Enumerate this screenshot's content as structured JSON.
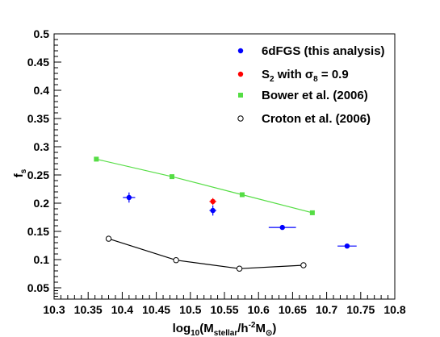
{
  "chart_data": {
    "type": "scatter",
    "xlim": [
      10.3,
      10.8
    ],
    "ylim": [
      0.03,
      0.5
    ],
    "x_ticks": [
      "10.3",
      "10.35",
      "10.4",
      "10.45",
      "10.5",
      "10.55",
      "10.6",
      "10.65",
      "10.7",
      "10.75",
      "10.8"
    ],
    "y_ticks": [
      "0.05",
      "0.1",
      "0.15",
      "0.2",
      "0.25",
      "0.3",
      "0.35",
      "0.4",
      "0.45",
      "0.5"
    ],
    "xlabel": {
      "base": "log",
      "sub1": "10",
      "mid": "(M",
      "sub2": "stellar",
      "mid2": "/h",
      "sup": "-2",
      "end": "M",
      "sub3": "⊙",
      "close": ")"
    },
    "ylabel": {
      "base": "f",
      "sub": "s"
    },
    "grid": false,
    "legend_position": "top-right",
    "legend": [
      {
        "label": "6dFGS (this analysis)",
        "marker": "filled-circle",
        "color": "#0000ff"
      },
      {
        "label_parts": {
          "base": "S",
          "sub": "2",
          "mid": " with σ",
          "sub2": "8",
          "end": " = 0.9"
        },
        "marker": "filled-circle",
        "color": "#ff0000"
      },
      {
        "label": "Bower et al. (2006)",
        "marker": "square",
        "color": "#55dd44"
      },
      {
        "label": "Croton et al. (2006)",
        "marker": "open-circle",
        "color": "#000000"
      }
    ],
    "series": [
      {
        "key": "6dfgs",
        "marker": "filled-circle",
        "color": "#0000ff",
        "points": [
          {
            "x": 10.41,
            "y": 0.21,
            "xerr": 0.009,
            "yerr": 0.009
          },
          {
            "x": 10.533,
            "y": 0.187,
            "xerr": 0.005,
            "yerr": 0.009
          },
          {
            "x": 10.635,
            "y": 0.157,
            "xerr": 0.02,
            "yerr": 0.004
          },
          {
            "x": 10.73,
            "y": 0.124,
            "xerr": 0.014,
            "yerr": 0.003
          }
        ]
      },
      {
        "key": "s2",
        "marker": "filled-circle",
        "color": "#ff0000",
        "points": [
          {
            "x": 10.533,
            "y": 0.203,
            "xerr": 0.005,
            "yerr": 0.006
          }
        ]
      },
      {
        "key": "bower",
        "marker": "square",
        "color": "#55dd44",
        "line": true,
        "points": [
          {
            "x": 10.362,
            "y": 0.278
          },
          {
            "x": 10.473,
            "y": 0.247
          },
          {
            "x": 10.576,
            "y": 0.215
          },
          {
            "x": 10.679,
            "y": 0.183
          }
        ]
      },
      {
        "key": "croton",
        "marker": "open-circle",
        "color": "#000000",
        "line": true,
        "points": [
          {
            "x": 10.38,
            "y": 0.137
          },
          {
            "x": 10.479,
            "y": 0.099
          },
          {
            "x": 10.572,
            "y": 0.084
          },
          {
            "x": 10.666,
            "y": 0.09
          }
        ]
      }
    ]
  }
}
